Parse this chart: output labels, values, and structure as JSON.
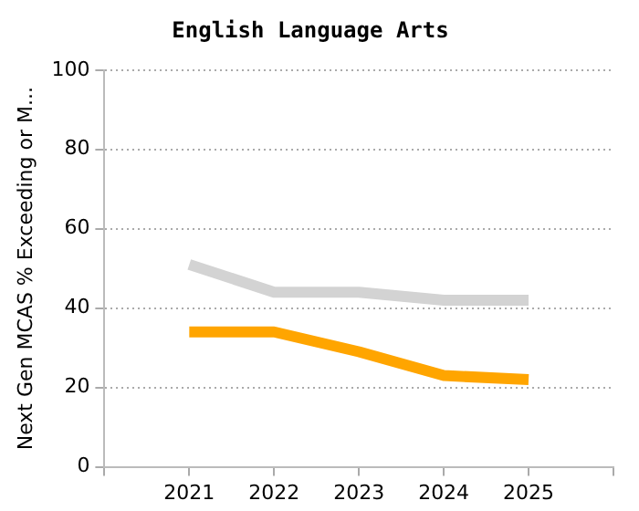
{
  "chart_data": {
    "type": "line",
    "title": "English Language Arts",
    "ylabel": "Next Gen MCAS % Exceeding or M...",
    "x": [
      2021,
      2022,
      2023,
      2024,
      2025
    ],
    "series": [
      {
        "color": "#d3d3d3",
        "values": [
          51,
          44,
          44,
          42,
          42
        ]
      },
      {
        "color": "#ffa500",
        "values": [
          34,
          34,
          29,
          23,
          22
        ]
      }
    ],
    "xlim": [
      2020,
      2026
    ],
    "xticks": [
      {
        "value": 2020,
        "label": null
      },
      2021,
      2022,
      2023,
      2024,
      2025,
      {
        "value": 2026,
        "label": null
      }
    ],
    "ylim": [
      0,
      100
    ],
    "yticks": [
      0,
      20,
      40,
      60,
      80,
      100
    ],
    "grid": "y",
    "legend": false
  }
}
